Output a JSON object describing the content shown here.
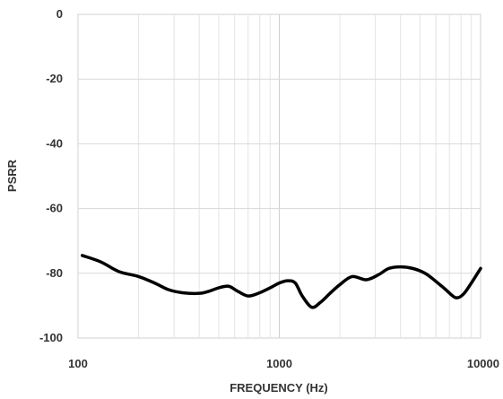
{
  "chart_data": {
    "type": "line",
    "title": "",
    "xlabel": "FREQUENCY (Hz)",
    "ylabel": "PSRR",
    "xscale": "log",
    "xlim": [
      100,
      10000
    ],
    "ylim": [
      -100,
      0
    ],
    "grid": true,
    "legend": "none",
    "x_ticks": [
      100,
      1000,
      10000
    ],
    "x_tick_labels": [
      "100",
      "1000",
      "10000"
    ],
    "y_ticks": [
      0,
      -20,
      -40,
      -60,
      -80,
      -100
    ],
    "y_tick_labels": [
      "0",
      "-20",
      "-40",
      "-60",
      "-80",
      "-100"
    ],
    "line_color": "#000000",
    "series": [
      {
        "x": [
          105,
          130,
          160,
          200,
          240,
          280,
          330,
          400,
          450,
          500,
          560,
          620,
          700,
          800,
          900,
          1000,
          1100,
          1200,
          1300,
          1450,
          1600,
          1800,
          2000,
          2300,
          2700,
          3100,
          3500,
          4000,
          4600,
          5300,
          6000,
          6700,
          7500,
          8200,
          9000,
          10000
        ],
        "y": [
          -74.5,
          -76.5,
          -79.5,
          -81,
          -83,
          -85,
          -86,
          -86.2,
          -85.5,
          -84.5,
          -84,
          -85.5,
          -87,
          -86,
          -84.5,
          -83,
          -82.3,
          -83,
          -87,
          -90.5,
          -89,
          -86,
          -83.5,
          -81,
          -82,
          -80.5,
          -78.5,
          -78,
          -78.5,
          -80,
          -82.5,
          -85,
          -87.5,
          -86.5,
          -83,
          -78.5
        ]
      }
    ]
  }
}
